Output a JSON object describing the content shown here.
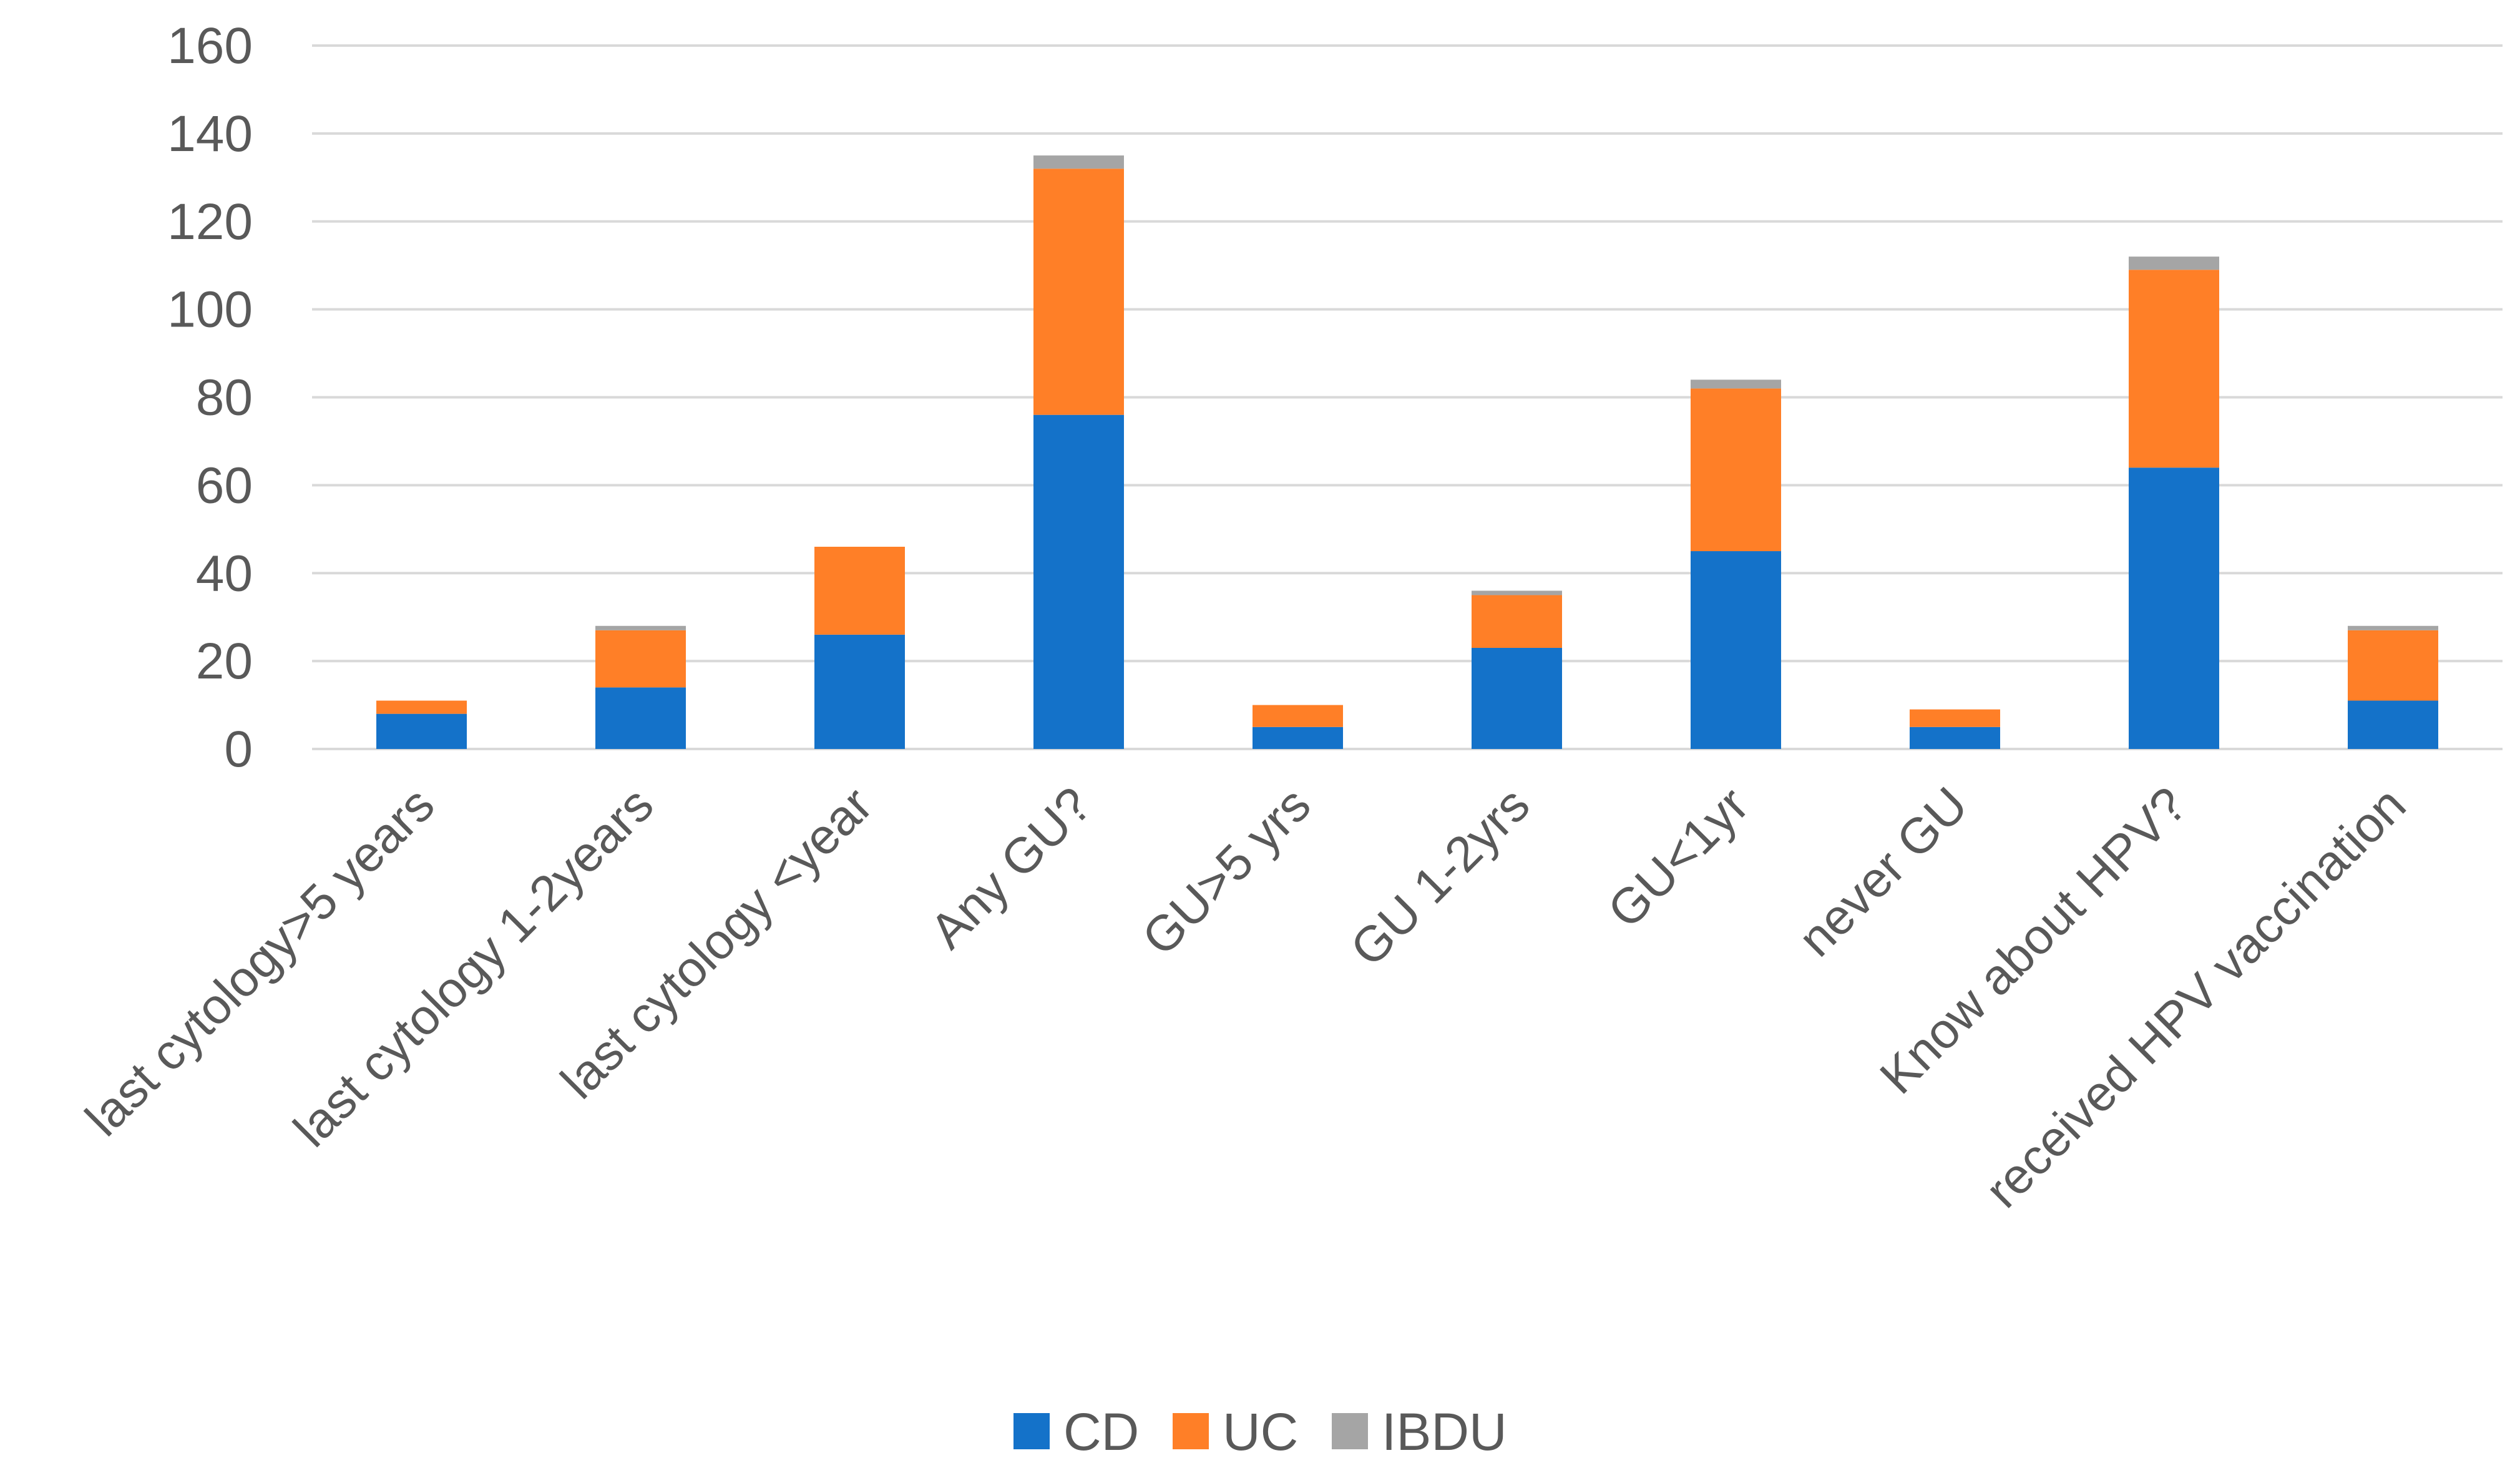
{
  "chart_data": {
    "type": "bar",
    "stacked": true,
    "categories": [
      "last cytology>5 years",
      "last cytology 1-2years",
      "last cytology <year",
      "Any GU?",
      "GU>5 yrs",
      "GU 1-2yrs",
      "GU<1yr",
      "never GU",
      "Know about HPV?",
      "received HPV vaccination"
    ],
    "series": [
      {
        "name": "CD",
        "color": "#1472c9",
        "values": [
          8,
          14,
          26,
          76,
          5,
          23,
          45,
          5,
          64,
          11
        ]
      },
      {
        "name": "UC",
        "color": "#ff7f27",
        "values": [
          3,
          13,
          20,
          56,
          5,
          12,
          37,
          4,
          45,
          16
        ]
      },
      {
        "name": "IBDU",
        "color": "#a5a5a5",
        "values": [
          0,
          1,
          0,
          3,
          0,
          1,
          2,
          0,
          3,
          1
        ]
      }
    ],
    "title": "",
    "xlabel": "",
    "ylabel": "",
    "ylim": [
      0,
      160
    ],
    "yticks": [
      "0",
      "20",
      "40",
      "60",
      "80",
      "100",
      "120",
      "140",
      "160"
    ],
    "grid": true,
    "legend_position": "bottom"
  }
}
